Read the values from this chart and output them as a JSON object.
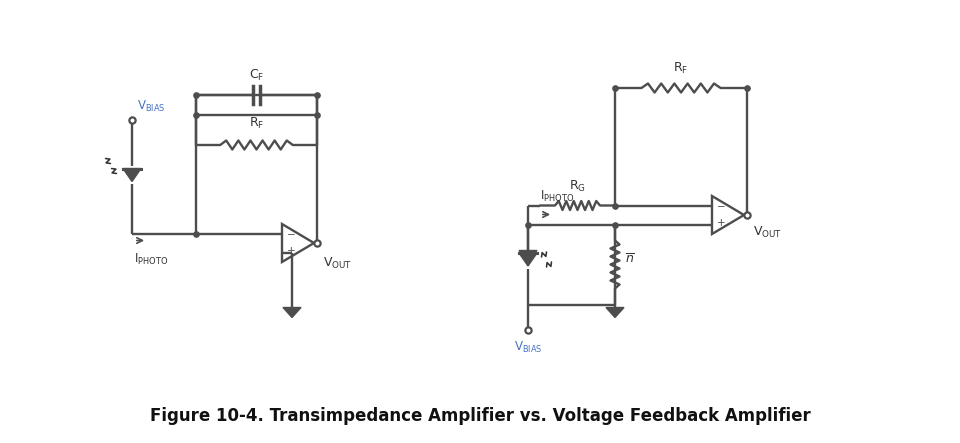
{
  "title": "Figure 10-4. Transimpedance Amplifier vs. Voltage Feedback Amplifier",
  "bg": "#ffffff",
  "lc": "#4d4d4d",
  "blue": "#4472C4",
  "dark": "#333333",
  "lw": 1.7
}
